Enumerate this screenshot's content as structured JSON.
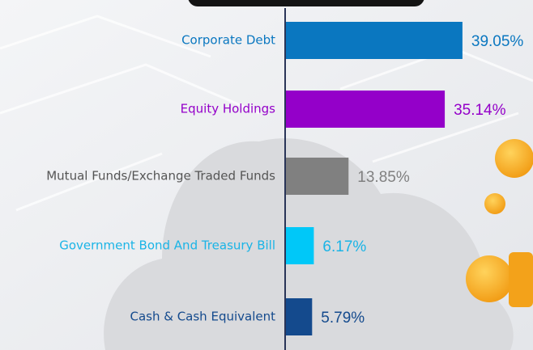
{
  "chart_data": {
    "type": "bar",
    "orientation": "horizontal",
    "categories": [
      "Corporate Debt",
      "Equity Holdings",
      "Mutual Funds/Exchange Traded Funds",
      "Government Bond And Treasury Bill",
      "Cash & Cash Equivalent"
    ],
    "values": [
      39.05,
      35.14,
      13.85,
      6.17,
      5.79
    ],
    "value_labels": [
      "39.05%",
      "35.14%",
      "13.85%",
      "6.17%",
      "5.79%"
    ],
    "colors": [
      "#0a77c0",
      "#9400c9",
      "#808080",
      "#00c8f8",
      "#144a8d"
    ],
    "label_colors": [
      "#0a77c0",
      "#9400c9",
      "#555555",
      "#1ab4e6",
      "#144a8d"
    ]
  }
}
